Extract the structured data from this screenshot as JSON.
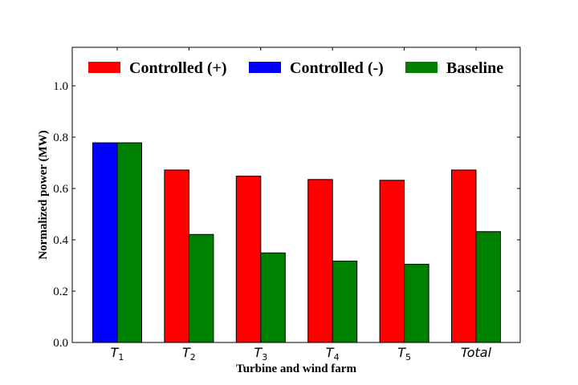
{
  "chart_data": {
    "type": "bar",
    "categories": [
      {
        "base": "T",
        "sub": "1"
      },
      {
        "base": "T",
        "sub": "2"
      },
      {
        "base": "T",
        "sub": "3"
      },
      {
        "base": "T",
        "sub": "4"
      },
      {
        "base": "T",
        "sub": "5"
      },
      {
        "base": "Total",
        "sub": ""
      }
    ],
    "series": [
      {
        "name": "Controlled (+)",
        "color": "#ff0000",
        "values": [
          null,
          0.672,
          0.648,
          0.635,
          0.632,
          0.672
        ]
      },
      {
        "name": "Controlled (-)",
        "color": "#0000ff",
        "values": [
          0.778,
          null,
          null,
          null,
          null,
          null
        ]
      },
      {
        "name": "Baseline",
        "color": "#008000",
        "values": [
          0.778,
          0.421,
          0.349,
          0.317,
          0.305,
          0.432
        ]
      }
    ],
    "xlabel": "Turbine and wind farm",
    "ylabel": "Normalized power (MW)",
    "ylim": [
      0,
      1.15
    ],
    "yticks": [
      "0.0",
      "0.2",
      "0.4",
      "0.6",
      "0.8",
      "1.0"
    ],
    "legend_position": "top",
    "grid": false
  }
}
